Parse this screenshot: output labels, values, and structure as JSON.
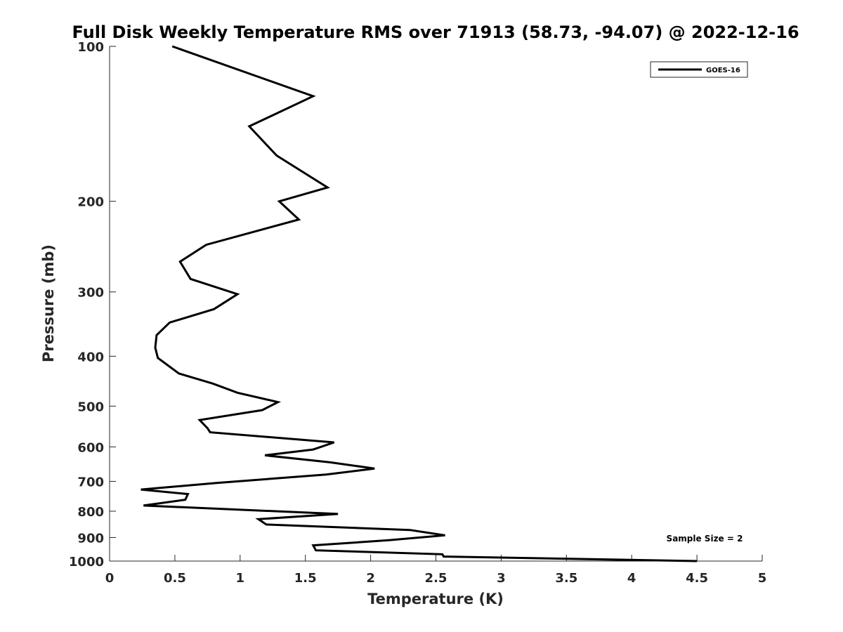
{
  "chart_data": {
    "type": "line",
    "title": "Full Disk Weekly Temperature RMS over 71913 (58.73, -94.07) @ 2022-12-16",
    "xlabel": "Temperature (K)",
    "ylabel": "Pressure (mb)",
    "xlim": [
      0,
      5
    ],
    "ylim": [
      100,
      1000
    ],
    "yscale": "log",
    "y_reversed": true,
    "x_ticks": [
      "0",
      "0.5",
      "1",
      "1.5",
      "2",
      "2.5",
      "3",
      "3.5",
      "4",
      "4.5",
      "5"
    ],
    "y_ticks": [
      "100",
      "200",
      "300",
      "400",
      "500",
      "600",
      "700",
      "800",
      "900",
      "1000"
    ],
    "grid": false,
    "legend_position": "top-right",
    "annotation": "Sample Size = 2",
    "series": [
      {
        "name": "GOES-16",
        "color": "#000000",
        "points": [
          [
            0.48,
            100
          ],
          [
            1.56,
            125
          ],
          [
            1.07,
            143
          ],
          [
            1.28,
            163
          ],
          [
            1.67,
            188
          ],
          [
            1.3,
            200
          ],
          [
            1.45,
            217
          ],
          [
            0.74,
            243
          ],
          [
            0.54,
            262
          ],
          [
            0.62,
            283
          ],
          [
            0.98,
            303
          ],
          [
            0.8,
            324
          ],
          [
            0.46,
            344
          ],
          [
            0.36,
            364
          ],
          [
            0.35,
            385
          ],
          [
            0.37,
            403
          ],
          [
            0.53,
            432
          ],
          [
            0.79,
            452
          ],
          [
            0.98,
            471
          ],
          [
            1.29,
            491
          ],
          [
            1.17,
            509
          ],
          [
            0.69,
            532
          ],
          [
            0.75,
            552
          ],
          [
            0.77,
            562
          ],
          [
            1.72,
            588
          ],
          [
            1.56,
            607
          ],
          [
            1.19,
            623
          ],
          [
            1.69,
            643
          ],
          [
            2.03,
            661
          ],
          [
            1.66,
            679
          ],
          [
            0.82,
            705
          ],
          [
            0.24,
            726
          ],
          [
            0.6,
            741
          ],
          [
            0.58,
            760
          ],
          [
            0.26,
            780
          ],
          [
            1.75,
            810
          ],
          [
            1.14,
            829
          ],
          [
            1.2,
            849
          ],
          [
            2.3,
            870
          ],
          [
            2.57,
            891
          ],
          [
            2.14,
            911
          ],
          [
            1.56,
            932
          ],
          [
            1.58,
            953
          ],
          [
            2.55,
            970
          ],
          [
            2.56,
            980
          ],
          [
            4.5,
            1000
          ]
        ]
      }
    ]
  }
}
